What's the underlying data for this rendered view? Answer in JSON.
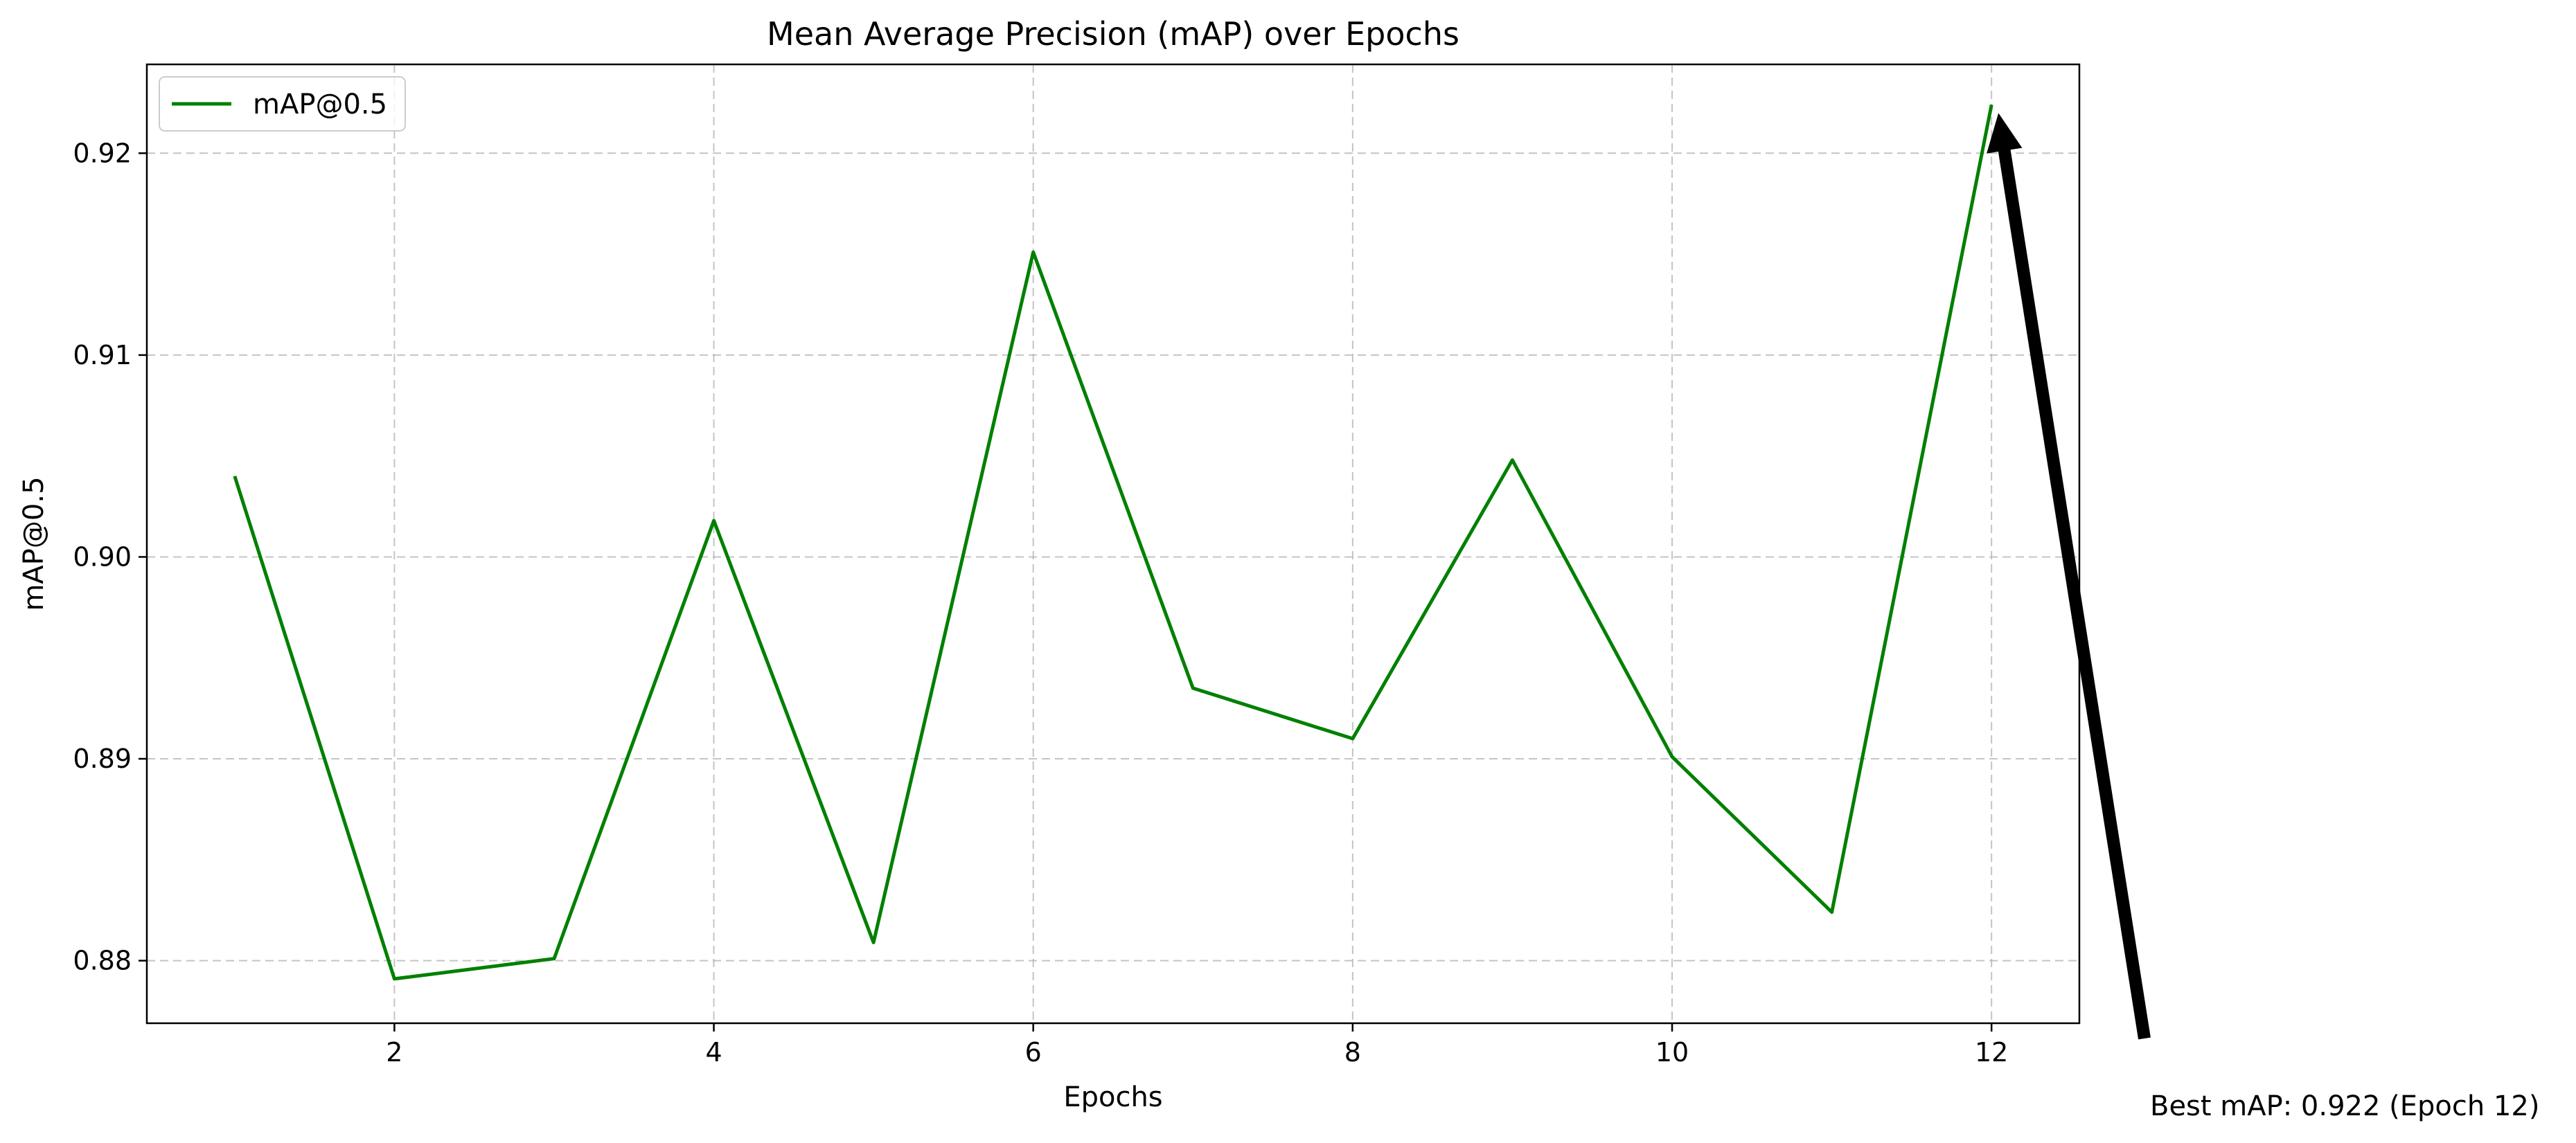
{
  "chart_data": {
    "type": "line",
    "title": "Mean Average Precision (mAP) over Epochs",
    "xlabel": "Epochs",
    "ylabel": "mAP@0.5",
    "xlim": [
      0.45,
      12.55
    ],
    "ylim": [
      0.8769,
      0.9244
    ],
    "xticks": [
      2,
      4,
      6,
      8,
      10,
      12
    ],
    "xtick_labels": [
      "2",
      "4",
      "6",
      "8",
      "10",
      "12"
    ],
    "yticks": [
      0.88,
      0.89,
      0.9,
      0.91,
      0.92
    ],
    "ytick_labels": [
      "0.88",
      "0.89",
      "0.90",
      "0.91",
      "0.92"
    ],
    "grid": true,
    "grid_style": "dashed",
    "legend_position": "upper-left",
    "series": [
      {
        "name": "mAP@0.5",
        "color": "#008000",
        "x": [
          1,
          2,
          3,
          4,
          5,
          6,
          7,
          8,
          9,
          10,
          11,
          12
        ],
        "values": [
          0.904,
          0.8791,
          0.8801,
          0.9018,
          0.8809,
          0.9151,
          0.8935,
          0.891,
          0.9048,
          0.8901,
          0.8824,
          0.9224
        ]
      }
    ],
    "annotations": [
      {
        "text": "Best mAP: 0.922 (Epoch 12)",
        "point_x": 12,
        "point_y": 0.9224,
        "arrow": true
      }
    ]
  }
}
